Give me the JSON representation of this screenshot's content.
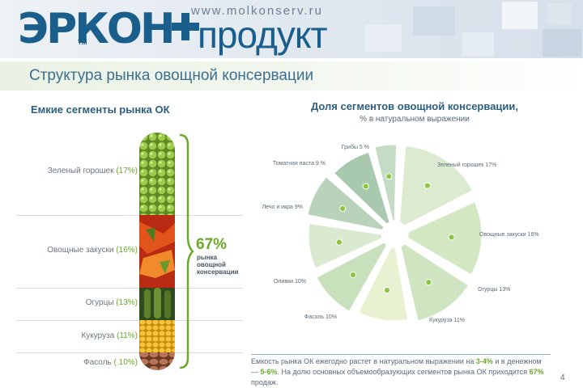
{
  "header": {
    "logo_word": "ЭРКОН",
    "logo_tm": "TM",
    "url": "www.molkonserv.ru",
    "product": "продукт"
  },
  "page_title": "Структура рынка овощной консервации",
  "left": {
    "heading": "Емкие сегменты рынка ОК",
    "segments": [
      {
        "name": "Зеленый горошек",
        "pct": "(17%)"
      },
      {
        "name": "Овощные закуски",
        "pct": "(16%)"
      },
      {
        "name": "Огурцы",
        "pct": "(13%)"
      },
      {
        "name": "Кукуруза",
        "pct": "(11%)"
      },
      {
        "name": "Фасоль",
        "pct": "( 10%)"
      }
    ],
    "total_pct": "67%",
    "total_note": [
      "рынка",
      "овощной",
      "консервации"
    ]
  },
  "right": {
    "heading": "Доля сегментов овощной консервации,",
    "subheading": "% в натуральном выражении"
  },
  "chart_data": {
    "type": "pie",
    "title": "Доля сегментов овощной консервации,",
    "subtitle": "% в натуральном выражении",
    "slices": [
      {
        "label": "Зеленый горошек 17%",
        "value": 17
      },
      {
        "label": "Овощные закуски 16%",
        "value": 16
      },
      {
        "label": "Огурцы 13%",
        "value": 13
      },
      {
        "label": "Кукуруза 11%",
        "value": 11
      },
      {
        "label": "Фасоль 10%",
        "value": 10
      },
      {
        "label": "Оливки 10%",
        "value": 10
      },
      {
        "label": "Лечо и икра 9%",
        "value": 9
      },
      {
        "label": "Томатная паста 9 %",
        "value": 9
      },
      {
        "label": "Грибы 5 %",
        "value": 5
      }
    ],
    "colors": [
      "#dcebcf",
      "#d3e7c3",
      "#cfe4c0",
      "#e8f2d2",
      "#c8e0bc",
      "#d9ead0",
      "#b9d3bb",
      "#a9c9ae",
      "#c4dcc4"
    ]
  },
  "bottom": {
    "t1": "Емкость рынка ОК ежегодно растет в натуральном выражении на ",
    "h1": "3-4%",
    "t2": " и в денежном — ",
    "h2": "5-6%",
    "t3": ". На долю основных объемообразующих сегментов рынка ОК приходится ",
    "h3": "67%",
    "t4": " продаж."
  },
  "page_number": "4",
  "colors": {
    "brand_blue": "#1a5e8c",
    "accent_green": "#6aaa2a",
    "dot_green": "#8cc63f"
  }
}
